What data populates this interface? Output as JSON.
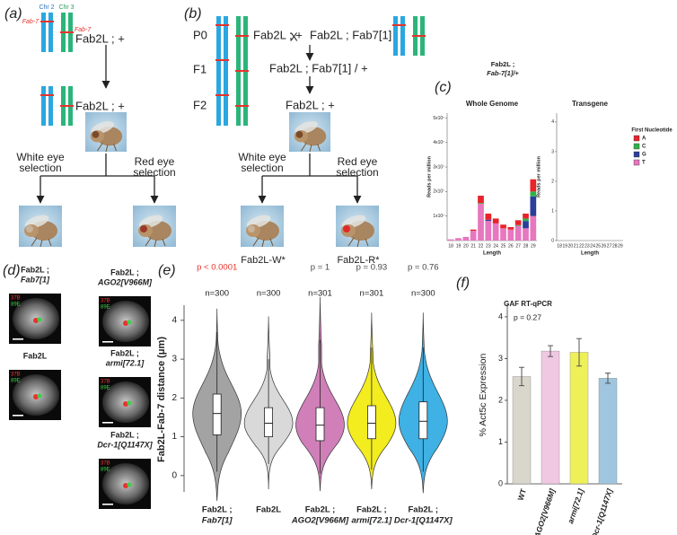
{
  "panel_labels": [
    "(a)",
    "(b)",
    "(c)",
    "(d)",
    "(e)",
    "(f)"
  ],
  "panel_a": {
    "chr_labels": [
      "Chr 2",
      "Chr 3"
    ],
    "fab7_labels": [
      "Fab-7",
      "Fab-7"
    ],
    "genotypes": [
      "Fab2L ; +",
      "Fab2L ; +"
    ],
    "selections": [
      [
        "White eye",
        "selection"
      ],
      [
        "Red eye",
        "selection"
      ]
    ]
  },
  "panel_b": {
    "generations": [
      "P0",
      "F1",
      "F2"
    ],
    "cross": [
      "Fab2L ; +",
      "X",
      "Fab2L ; Fab7[1]"
    ],
    "f1": "Fab2L ; Fab7[1] / +",
    "f2": "Fab2L ; +",
    "selections": [
      [
        "White eye",
        "selection"
      ],
      [
        "Red eye",
        "selection"
      ]
    ],
    "lines": [
      "Fab2L-W*",
      "Fab2L-R*"
    ]
  },
  "panel_d": {
    "images": [
      {
        "title": [
          "Fab2L ;",
          "Fab7[1]"
        ],
        "probes": [
          "37B",
          "89E"
        ]
      },
      {
        "title": [
          "Fab2L ;",
          "AGO2[V966M]"
        ],
        "probes": [
          "37B",
          "89E"
        ]
      },
      {
        "title": [
          "Fab2L"
        ],
        "probes": [
          "37B",
          "89E"
        ]
      },
      {
        "title": [
          "Fab2L ;",
          "armi[72.1]"
        ],
        "probes": [
          "37B",
          "89E"
        ]
      },
      {
        "title": [
          "Fab2L ;",
          "Dcr-1[Q1147X]"
        ],
        "probes": [
          "37B",
          "89E"
        ]
      }
    ]
  },
  "chart_data": [
    {
      "type": "stacked-bar",
      "header": [
        "Fab2L ;",
        "Fab-7[1]/+"
      ],
      "title": "Whole Genome",
      "xlabel": "Length",
      "ylabel": "Reads per million",
      "legend_title": "First Nucleotide",
      "categories": [
        "18",
        "19",
        "20",
        "21",
        "22",
        "23",
        "24",
        "25",
        "26",
        "27",
        "28",
        "29"
      ],
      "series": [
        {
          "name": "A",
          "color": "#e8232a",
          "values": [
            0,
            0,
            0,
            500000,
            3000000,
            2500000,
            2000000,
            1500000,
            1000000,
            2000000,
            2000000,
            5000000
          ]
        },
        {
          "name": "C",
          "color": "#2fb24a",
          "values": [
            0,
            0,
            0,
            0,
            300000,
            0,
            0,
            0,
            0,
            300000,
            1000000,
            2000000
          ]
        },
        {
          "name": "G",
          "color": "#2b3f9a",
          "values": [
            0,
            0,
            0,
            0,
            0,
            500000,
            0,
            0,
            0,
            0,
            3000000,
            8000000
          ]
        },
        {
          "name": "T",
          "color": "#e777bf",
          "values": [
            500000,
            1000000,
            1500000,
            4000000,
            15000000,
            8000000,
            7000000,
            5000000,
            4500000,
            6000000,
            5000000,
            10000000
          ]
        }
      ],
      "ylim": [
        0,
        52000000
      ],
      "yticks": [
        {
          "value": 10000000,
          "label": "1x10⁷"
        },
        {
          "value": 20000000,
          "label": "2x10⁷"
        },
        {
          "value": 30000000,
          "label": "3x10⁷"
        },
        {
          "value": 40000000,
          "label": "4x10⁷"
        },
        {
          "value": 50000000,
          "label": "5x10⁷"
        }
      ]
    },
    {
      "type": "stacked-bar",
      "title": "Transgene",
      "xlabel": "Length",
      "ylabel": "Reads per million",
      "categories": [
        "18",
        "19",
        "20",
        "21",
        "22",
        "23",
        "24",
        "25",
        "26",
        "27",
        "28",
        "29"
      ],
      "series": [],
      "ylim": [
        0,
        4.3
      ],
      "yticks": [
        0,
        1,
        2,
        3,
        4
      ]
    },
    {
      "type": "violin",
      "ylabel": "Fab2L-Fab-7 distance (μm)",
      "categories": [
        [
          "Fab2L ;",
          "Fab7[1]"
        ],
        [
          "Fab2L"
        ],
        [
          "Fab2L ;",
          "AGO2[V966M]"
        ],
        [
          "Fab2L ;",
          "armi[72.1]"
        ],
        [
          "Fab2L ;",
          "Dcr-1[Q1147X]"
        ]
      ],
      "p_values": [
        "p < 0.0001",
        null,
        "p = 1",
        "p = 0.93",
        "p = 0.76"
      ],
      "p_colors": [
        "#e8322b",
        "#444444",
        "#444444",
        "#444444",
        "#444444"
      ],
      "n_labels": [
        "n=300",
        "n=300",
        "n=301",
        "n=301",
        "n=300"
      ],
      "colors": [
        "#a3a3a3",
        "#d9d9d9",
        "#d07fb9",
        "#f3ec1e",
        "#3fb1e4"
      ],
      "median": [
        1.6,
        1.35,
        1.3,
        1.35,
        1.4
      ],
      "q1": [
        1.05,
        1.0,
        0.9,
        0.95,
        0.95
      ],
      "q3": [
        2.1,
        1.75,
        1.75,
        1.8,
        1.9
      ],
      "whisker_low": [
        0.1,
        0.3,
        0.05,
        0.15,
        0.1
      ],
      "whisker_high": [
        3.7,
        3.0,
        3.5,
        3.3,
        3.3
      ],
      "extent": [
        [
          -0.65,
          4.3
        ],
        [
          -0.35,
          4.1
        ],
        [
          -0.4,
          4.6
        ],
        [
          -0.35,
          4.2
        ],
        [
          -0.45,
          4.2
        ]
      ],
      "ylim": [
        -0.42,
        4.39
      ],
      "yticks": [
        0,
        1,
        2,
        3,
        4
      ]
    },
    {
      "type": "bar",
      "title": "GAF RT-qPCR",
      "annotation": "p = 0.27",
      "ylabel": "% Act5c Expression",
      "categories": [
        "WT",
        "AGO2[V966M]",
        "armi[72.1]",
        "Dcr-1[Q1147X]"
      ],
      "values": [
        2.57,
        3.18,
        3.15,
        2.53
      ],
      "errors": [
        0.22,
        0.13,
        0.33,
        0.12
      ],
      "colors": [
        "#d9d6cc",
        "#f0c8e2",
        "#eef05a",
        "#9fc6de"
      ],
      "ylim": [
        0,
        4.3
      ],
      "yticks": [
        0,
        1,
        2,
        3,
        4
      ]
    }
  ]
}
